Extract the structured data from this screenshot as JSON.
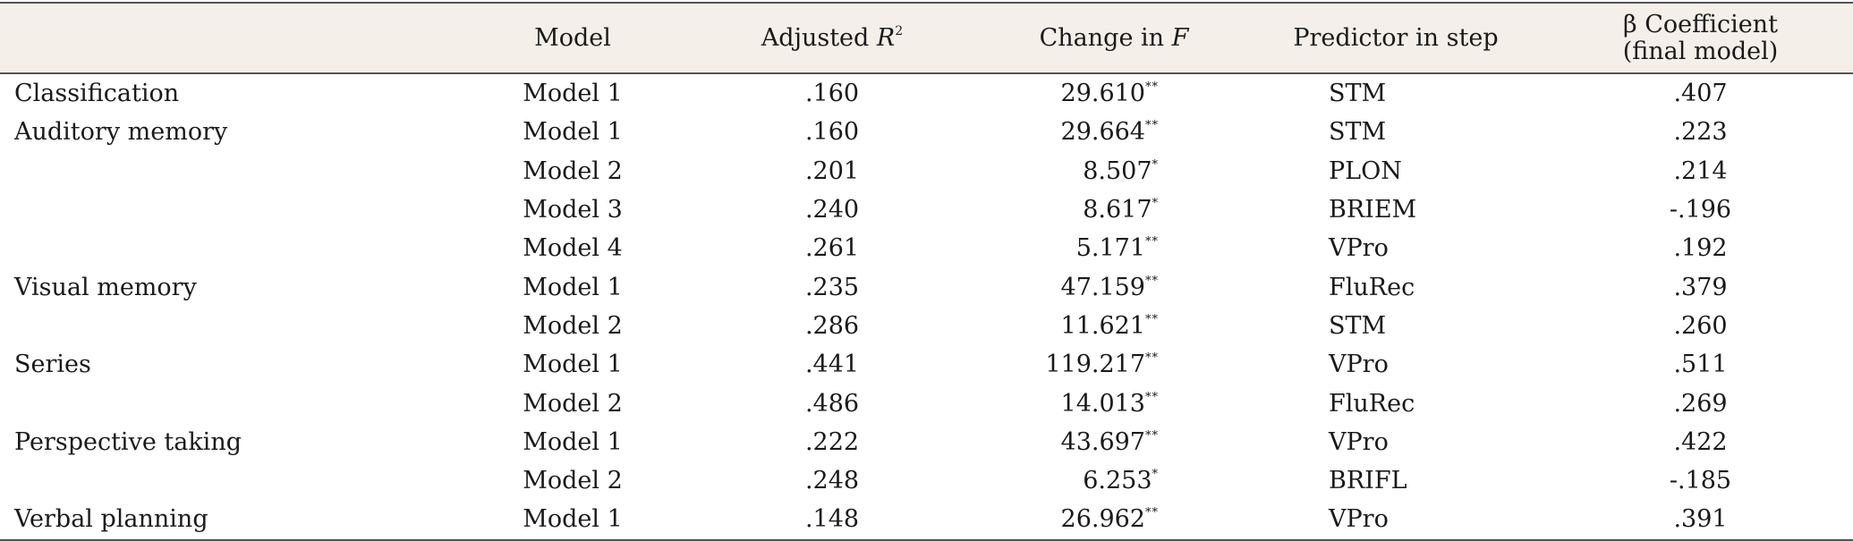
{
  "header": {
    "model": "Model",
    "adjusted_r2_prefix": "Adjusted ",
    "adjusted_r2_var": "R",
    "adjusted_r2_sup": "2",
    "change_f_prefix": "Change in ",
    "change_f_var": "F",
    "predictor": "Predictor in step",
    "beta_line1": "β Coefficient",
    "beta_line2": "(final model)"
  },
  "rows": [
    {
      "label": "Classification",
      "model": "Model 1",
      "r2": ".160",
      "f": "29.610",
      "sig": "**",
      "pred": "STM",
      "beta": ".407"
    },
    {
      "label": "Auditory memory",
      "model": "Model 1",
      "r2": ".160",
      "f": "29.664",
      "sig": "**",
      "pred": "STM",
      "beta": ".223"
    },
    {
      "label": "",
      "model": "Model 2",
      "r2": ".201",
      "f": "8.507",
      "sig": "*",
      "pred": "PLON",
      "beta": ".214"
    },
    {
      "label": "",
      "model": "Model 3",
      "r2": ".240",
      "f": "8.617",
      "sig": "*",
      "pred": "BRIEM",
      "beta": "-.196"
    },
    {
      "label": "",
      "model": "Model 4",
      "r2": ".261",
      "f": "5.171",
      "sig": "**",
      "pred": "VPro",
      "beta": ".192"
    },
    {
      "label": "Visual memory",
      "model": "Model 1",
      "r2": ".235",
      "f": "47.159",
      "sig": "**",
      "pred": "FluRec",
      "beta": ".379"
    },
    {
      "label": "",
      "model": "Model 2",
      "r2": ".286",
      "f": "11.621",
      "sig": "**",
      "pred": "STM",
      "beta": ".260"
    },
    {
      "label": "Series",
      "model": "Model 1",
      "r2": ".441",
      "f": "119.217",
      "sig": "**",
      "pred": "VPro",
      "beta": ".511"
    },
    {
      "label": "",
      "model": "Model 2",
      "r2": ".486",
      "f": "14.013",
      "sig": "**",
      "pred": "FluRec",
      "beta": ".269"
    },
    {
      "label": "Perspective taking",
      "model": "Model 1",
      "r2": ".222",
      "f": "43.697",
      "sig": "**",
      "pred": "VPro",
      "beta": ".422"
    },
    {
      "label": "",
      "model": "Model 2",
      "r2": ".248",
      "f": "6.253",
      "sig": "*",
      "pred": "BRIFL",
      "beta": "-.185"
    },
    {
      "label": "Verbal planning",
      "model": "Model 1",
      "r2": ".148",
      "f": "26.962",
      "sig": "**",
      "pred": "VPro",
      "beta": ".391"
    }
  ]
}
